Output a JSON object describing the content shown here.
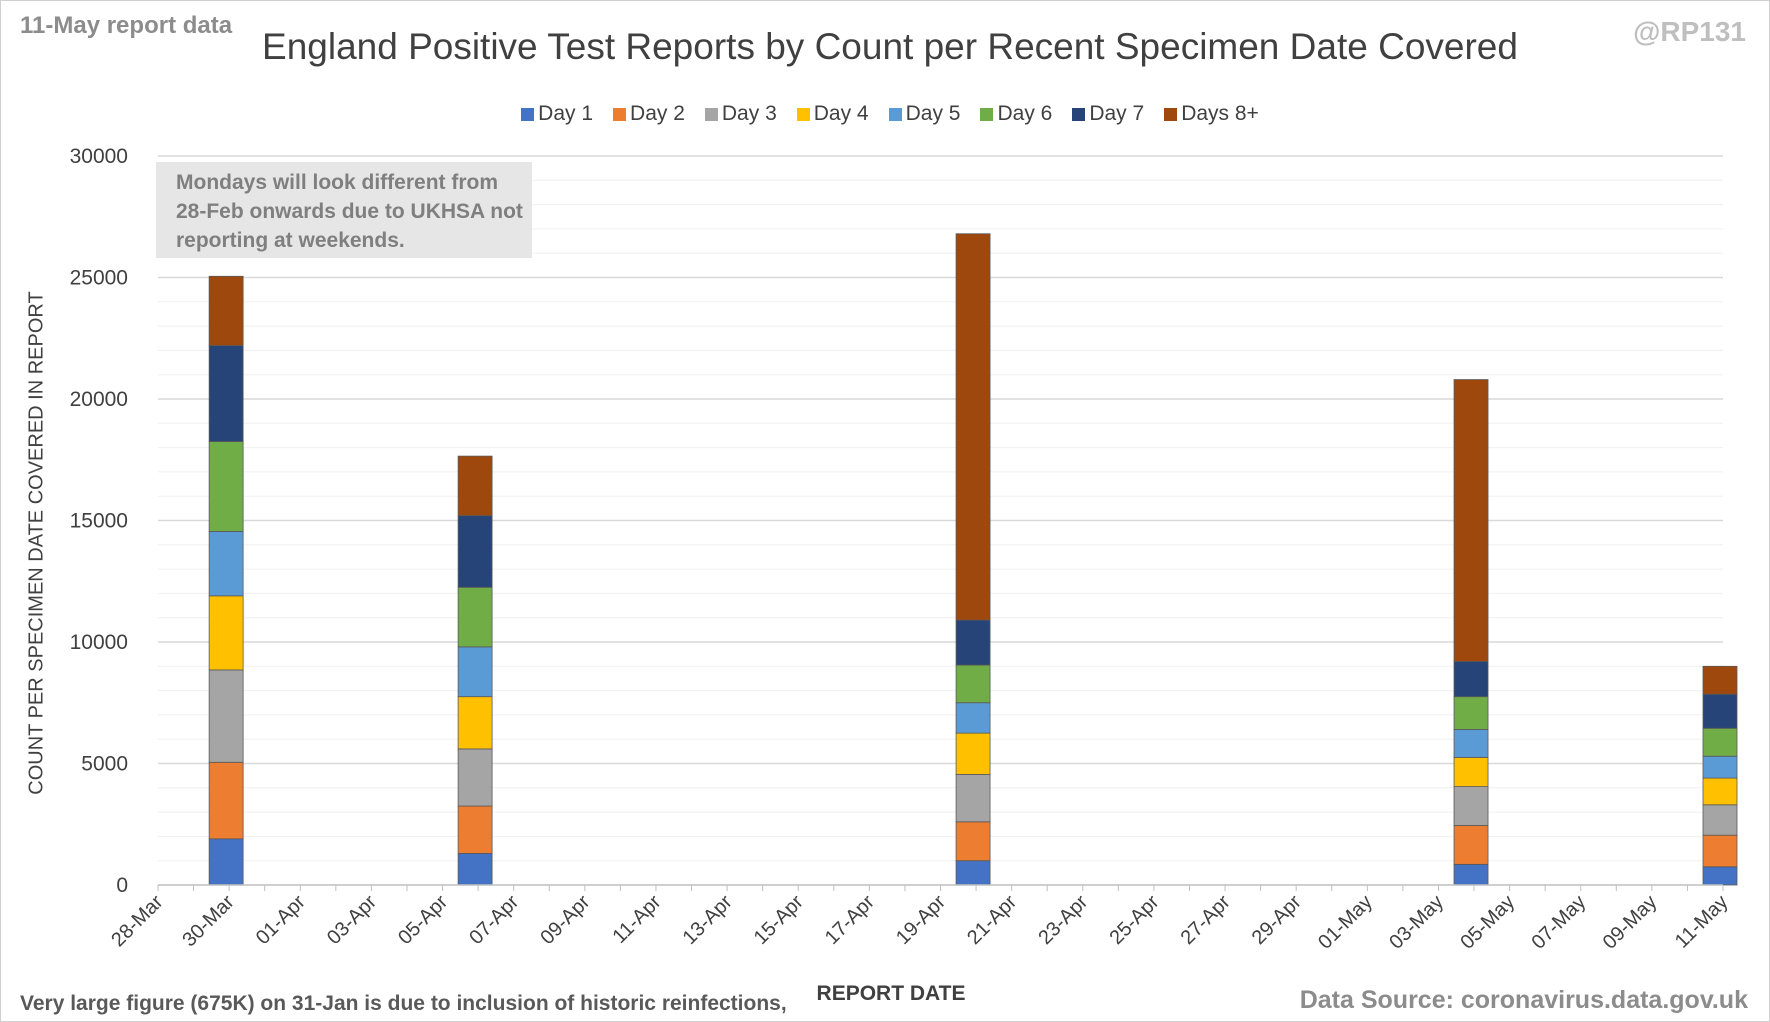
{
  "report_label": "11-May report data",
  "handle": "@RP131",
  "note": "Mondays will look different from 28-Feb onwards due to UKHSA not reporting at weekends.",
  "footnote": "Very large figure (675K) on 31-Jan is due to inclusion of historic reinfections,",
  "source": "Data Source: coronavirus.data.gov.uk",
  "chart_data": {
    "type": "bar",
    "stacked": true,
    "title": "England Positive Test Reports by Count per Recent Specimen Date Covered",
    "xlabel": "REPORT DATE",
    "ylabel": "COUNT PER SPECIMEN DATE COVERED IN REPORT",
    "ylim": [
      0,
      30000
    ],
    "yticks": [
      0,
      5000,
      10000,
      15000,
      20000,
      25000,
      30000
    ],
    "xticks": [
      "28-Mar",
      "30-Mar",
      "01-Apr",
      "03-Apr",
      "05-Apr",
      "07-Apr",
      "09-Apr",
      "11-Apr",
      "13-Apr",
      "15-Apr",
      "17-Apr",
      "19-Apr",
      "21-Apr",
      "23-Apr",
      "25-Apr",
      "27-Apr",
      "29-Apr",
      "01-May",
      "03-May",
      "05-May",
      "07-May",
      "09-May",
      "11-May"
    ],
    "x_range": [
      "28-Mar",
      "11-May"
    ],
    "grid": true,
    "legend_position": "top",
    "bars": [
      {
        "date": "30-Mar",
        "values": [
          1900,
          3150,
          3800,
          3050,
          2650,
          3700,
          3950,
          2850
        ]
      },
      {
        "date": "06-Apr",
        "values": [
          1300,
          1950,
          2350,
          2150,
          2050,
          2450,
          2950,
          2450
        ]
      },
      {
        "date": "20-Apr",
        "values": [
          1000,
          1600,
          1950,
          1700,
          1250,
          1550,
          1850,
          15900
        ]
      },
      {
        "date": "04-May",
        "values": [
          850,
          1600,
          1600,
          1200,
          1150,
          1350,
          1450,
          11600
        ]
      },
      {
        "date": "11-May",
        "values": [
          750,
          1300,
          1250,
          1100,
          900,
          1150,
          1400,
          1150
        ]
      }
    ],
    "series": [
      {
        "name": "Day 1",
        "color": "#4472c4"
      },
      {
        "name": "Day 2",
        "color": "#ed7d31"
      },
      {
        "name": "Day 3",
        "color": "#a5a5a5"
      },
      {
        "name": "Day 4",
        "color": "#ffc000"
      },
      {
        "name": "Day 5",
        "color": "#5b9bd5"
      },
      {
        "name": "Day 6",
        "color": "#70ad47"
      },
      {
        "name": "Day 7",
        "color": "#264478"
      },
      {
        "name": "Days 8+",
        "color": "#9e480e"
      }
    ]
  }
}
